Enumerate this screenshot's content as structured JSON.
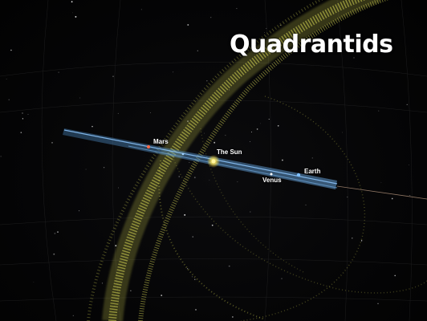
{
  "title": "Quadrantids",
  "bodies": {
    "mars": "Mars",
    "sun": "The Sun",
    "earth": "Earth",
    "venus": "Venus"
  },
  "colors": {
    "stream": "#e6e65a",
    "ecliptic": "#5fa6e6",
    "sun": "#ffe14a",
    "mars": "#ff6a4a",
    "earth": "#7fbfff"
  }
}
